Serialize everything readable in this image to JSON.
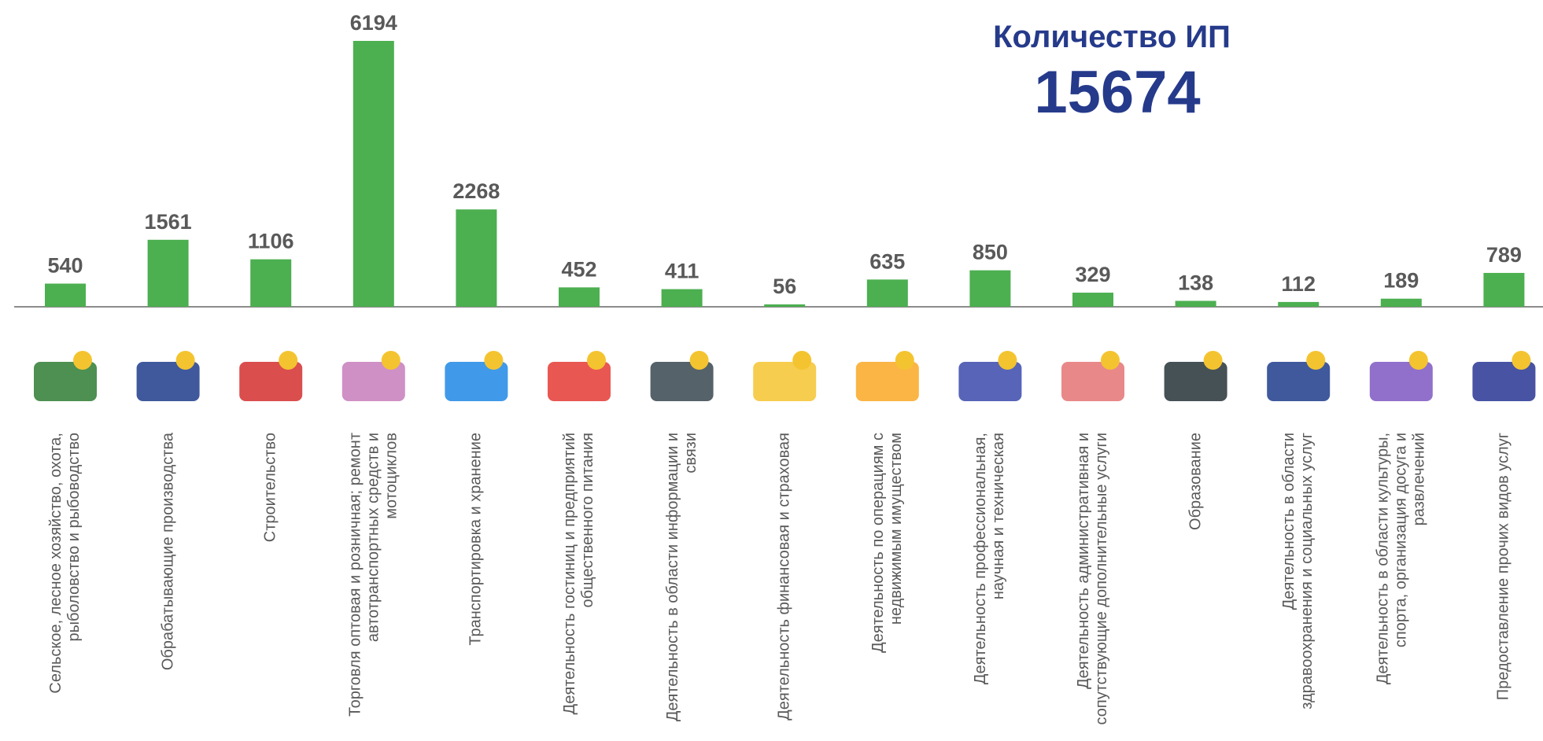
{
  "chart_data": {
    "type": "bar",
    "title": "Количество ИП",
    "annotation": "15674",
    "color": "#4caf50",
    "categories": [
      "Сельское, лесное хозяйство, охота, рыболовство и рыбоводство",
      "Обрабатывающие производства",
      "Строительство",
      "Торговля оптовая и розничная; ремонт автотранспортных средств и мотоциклов",
      "Транспортировка и хранение",
      "Деятельность гостиниц и предприятий общественного питания",
      "Деятельность в области информации и связи",
      "Деятельность финансовая и страховая",
      "Деятельность по операциям с недвижимым имуществом",
      "Деятельность профессиональная, научная и техническая",
      "Деятельность административная и сопутствующие дополнительные услуги",
      "Образование",
      "Деятельность в области здравоохранения и социальных услуг",
      "Деятельность в области культуры, спорта, организация досуга и развлечений",
      "Предоставление прочих видов услуг"
    ],
    "values": [
      540,
      1561,
      1106,
      6194,
      2268,
      452,
      411,
      56,
      635,
      850,
      329,
      138,
      112,
      189,
      789
    ]
  }
}
